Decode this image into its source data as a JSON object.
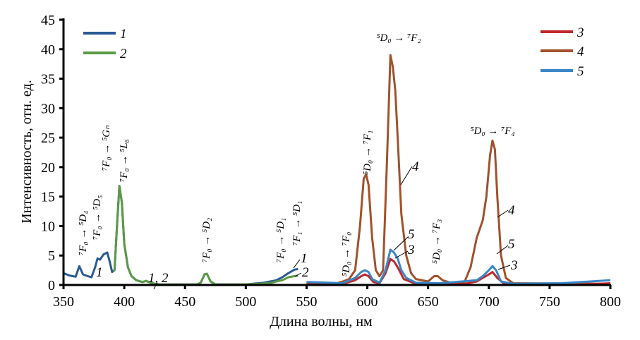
{
  "chart_data": {
    "type": "line",
    "title": "",
    "xlabel": "Длина волны, нм",
    "ylabel": "Интенсивность, отн. ед.",
    "xlim": [
      350,
      800
    ],
    "ylim": [
      0,
      45
    ],
    "xticks": [
      350,
      400,
      450,
      500,
      550,
      600,
      650,
      700,
      750,
      800
    ],
    "yticks": [
      0,
      5,
      10,
      15,
      20,
      25,
      30,
      35,
      40,
      45
    ],
    "grid": false,
    "legend": [
      {
        "placement": "top-left",
        "entries": [
          "1",
          "2"
        ]
      },
      {
        "placement": "top-right",
        "entries": [
          "3",
          "4",
          "5"
        ]
      }
    ],
    "series": [
      {
        "name": "1",
        "color": "#2a5a94",
        "points": [
          [
            350,
            2.0
          ],
          [
            355,
            1.6
          ],
          [
            360,
            1.4
          ],
          [
            363,
            3.2
          ],
          [
            366,
            1.8
          ],
          [
            370,
            1.5
          ],
          [
            373,
            1.3
          ],
          [
            376,
            3.0
          ],
          [
            378,
            4.5
          ],
          [
            380,
            4.3
          ],
          [
            383,
            5.2
          ],
          [
            386,
            5.5
          ],
          [
            388,
            4.0
          ],
          [
            390,
            2.2
          ],
          [
            392,
            2.5
          ],
          [
            394,
            10
          ],
          [
            396,
            16.8
          ],
          [
            398,
            14
          ],
          [
            400,
            7
          ],
          [
            403,
            3
          ],
          [
            406,
            1.5
          ],
          [
            410,
            0.8
          ],
          [
            415,
            0.5
          ],
          [
            418,
            0.7
          ],
          [
            420,
            0.5
          ],
          [
            425,
            0.2
          ],
          [
            430,
            0.1
          ],
          [
            460,
            0.1
          ],
          [
            463,
            0.4
          ],
          [
            466,
            1.8
          ],
          [
            468,
            1.9
          ],
          [
            471,
            0.6
          ],
          [
            475,
            0.1
          ],
          [
            500,
            0.1
          ],
          [
            515,
            0.4
          ],
          [
            525,
            0.8
          ],
          [
            530,
            1.3
          ],
          [
            535,
            2.0
          ],
          [
            540,
            2.6
          ],
          [
            543,
            2.7
          ]
        ]
      },
      {
        "name": "2",
        "color": "#5b9a45",
        "points": [
          [
            391,
            2.3
          ],
          [
            392,
            2.5
          ],
          [
            394,
            10
          ],
          [
            396,
            16.8
          ],
          [
            398,
            14
          ],
          [
            400,
            7
          ],
          [
            403,
            3
          ],
          [
            406,
            1.5
          ],
          [
            410,
            0.8
          ],
          [
            415,
            0.5
          ],
          [
            418,
            0.7
          ],
          [
            420,
            0.5
          ],
          [
            425,
            0.2
          ],
          [
            430,
            0.1
          ],
          [
            460,
            0.1
          ],
          [
            463,
            0.4
          ],
          [
            466,
            1.8
          ],
          [
            468,
            1.9
          ],
          [
            471,
            0.6
          ],
          [
            475,
            0.1
          ],
          [
            500,
            0.1
          ],
          [
            520,
            0.3
          ],
          [
            525,
            0.6
          ],
          [
            530,
            0.8
          ],
          [
            535,
            1.3
          ],
          [
            540,
            1.5
          ],
          [
            543,
            1.6
          ]
        ]
      },
      {
        "name": "3",
        "color": "#c0282d",
        "points": [
          [
            550,
            0.1
          ],
          [
            580,
            0.2
          ],
          [
            590,
            0.8
          ],
          [
            595,
            1.5
          ],
          [
            598,
            1.8
          ],
          [
            601,
            1.5
          ],
          [
            605,
            0.5
          ],
          [
            610,
            0.3
          ],
          [
            615,
            2.0
          ],
          [
            619,
            4.4
          ],
          [
            622,
            4.0
          ],
          [
            625,
            3.0
          ],
          [
            630,
            1.0
          ],
          [
            640,
            0.2
          ],
          [
            680,
            0.2
          ],
          [
            690,
            0.6
          ],
          [
            700,
            1.8
          ],
          [
            703,
            2.2
          ],
          [
            707,
            1.2
          ],
          [
            712,
            0.3
          ],
          [
            730,
            0.1
          ],
          [
            760,
            0
          ],
          [
            780,
            0.1
          ],
          [
            800,
            0.3
          ]
        ]
      },
      {
        "name": "4",
        "color": "#a0522d",
        "points": [
          [
            550,
            0.2
          ],
          [
            575,
            0.3
          ],
          [
            580,
            0.6
          ],
          [
            585,
            1.0
          ],
          [
            590,
            2.5
          ],
          [
            594,
            10
          ],
          [
            597,
            18
          ],
          [
            599,
            18.8
          ],
          [
            601,
            17
          ],
          [
            604,
            8
          ],
          [
            607,
            2.5
          ],
          [
            610,
            1.5
          ],
          [
            613,
            2.5
          ],
          [
            616,
            20
          ],
          [
            619,
            39
          ],
          [
            621,
            37
          ],
          [
            623,
            33
          ],
          [
            625,
            25
          ],
          [
            628,
            12
          ],
          [
            632,
            5
          ],
          [
            636,
            2.0
          ],
          [
            640,
            1.0
          ],
          [
            650,
            0.6
          ],
          [
            655,
            1.5
          ],
          [
            658,
            1.5
          ],
          [
            662,
            0.8
          ],
          [
            670,
            0.3
          ],
          [
            680,
            0.5
          ],
          [
            685,
            3
          ],
          [
            690,
            8
          ],
          [
            695,
            11
          ],
          [
            698,
            15
          ],
          [
            701,
            22
          ],
          [
            703,
            24.5
          ],
          [
            705,
            23
          ],
          [
            707,
            15
          ],
          [
            710,
            5
          ],
          [
            714,
            1.2
          ],
          [
            720,
            0.3
          ],
          [
            800,
            0.2
          ]
        ]
      },
      {
        "name": "5",
        "color": "#3a86c8",
        "points": [
          [
            550,
            0.5
          ],
          [
            580,
            0.3
          ],
          [
            590,
            1.2
          ],
          [
            595,
            2.2
          ],
          [
            598,
            2.5
          ],
          [
            601,
            2.2
          ],
          [
            604,
            1.0
          ],
          [
            610,
            0.4
          ],
          [
            615,
            2.5
          ],
          [
            619,
            6.0
          ],
          [
            622,
            5.5
          ],
          [
            625,
            4.5
          ],
          [
            628,
            2.5
          ],
          [
            632,
            1.2
          ],
          [
            640,
            0.4
          ],
          [
            660,
            0.3
          ],
          [
            690,
            0.8
          ],
          [
            695,
            1.5
          ],
          [
            700,
            2.5
          ],
          [
            703,
            3.2
          ],
          [
            706,
            2.5
          ],
          [
            710,
            0.6
          ],
          [
            720,
            0.2
          ],
          [
            760,
            0.3
          ],
          [
            800,
            0.8
          ]
        ]
      }
    ],
    "annotations": [
      "⁷F₀ → ⁵D₄",
      "⁷F₀ → ⁵D₅",
      "⁷F₀ → ⁵Gₙ",
      "⁷F₀ → ⁵L₆",
      "⁷F₀ → ⁵D₂",
      "⁷F₀ → ⁵D₁",
      "⁷F₁ → ⁵D₁",
      "⁵D₀ → ⁷F₀",
      "⁵D₀ → ⁷F₁",
      "⁵D₀ → ⁷F₂",
      "⁵D₀ → ⁷F₃",
      "⁵D₀ → ⁷F₄"
    ],
    "curve_labels": [
      "1",
      "1, 2",
      "1",
      "2",
      "4",
      "5",
      "3",
      "4",
      "5",
      "3"
    ]
  }
}
